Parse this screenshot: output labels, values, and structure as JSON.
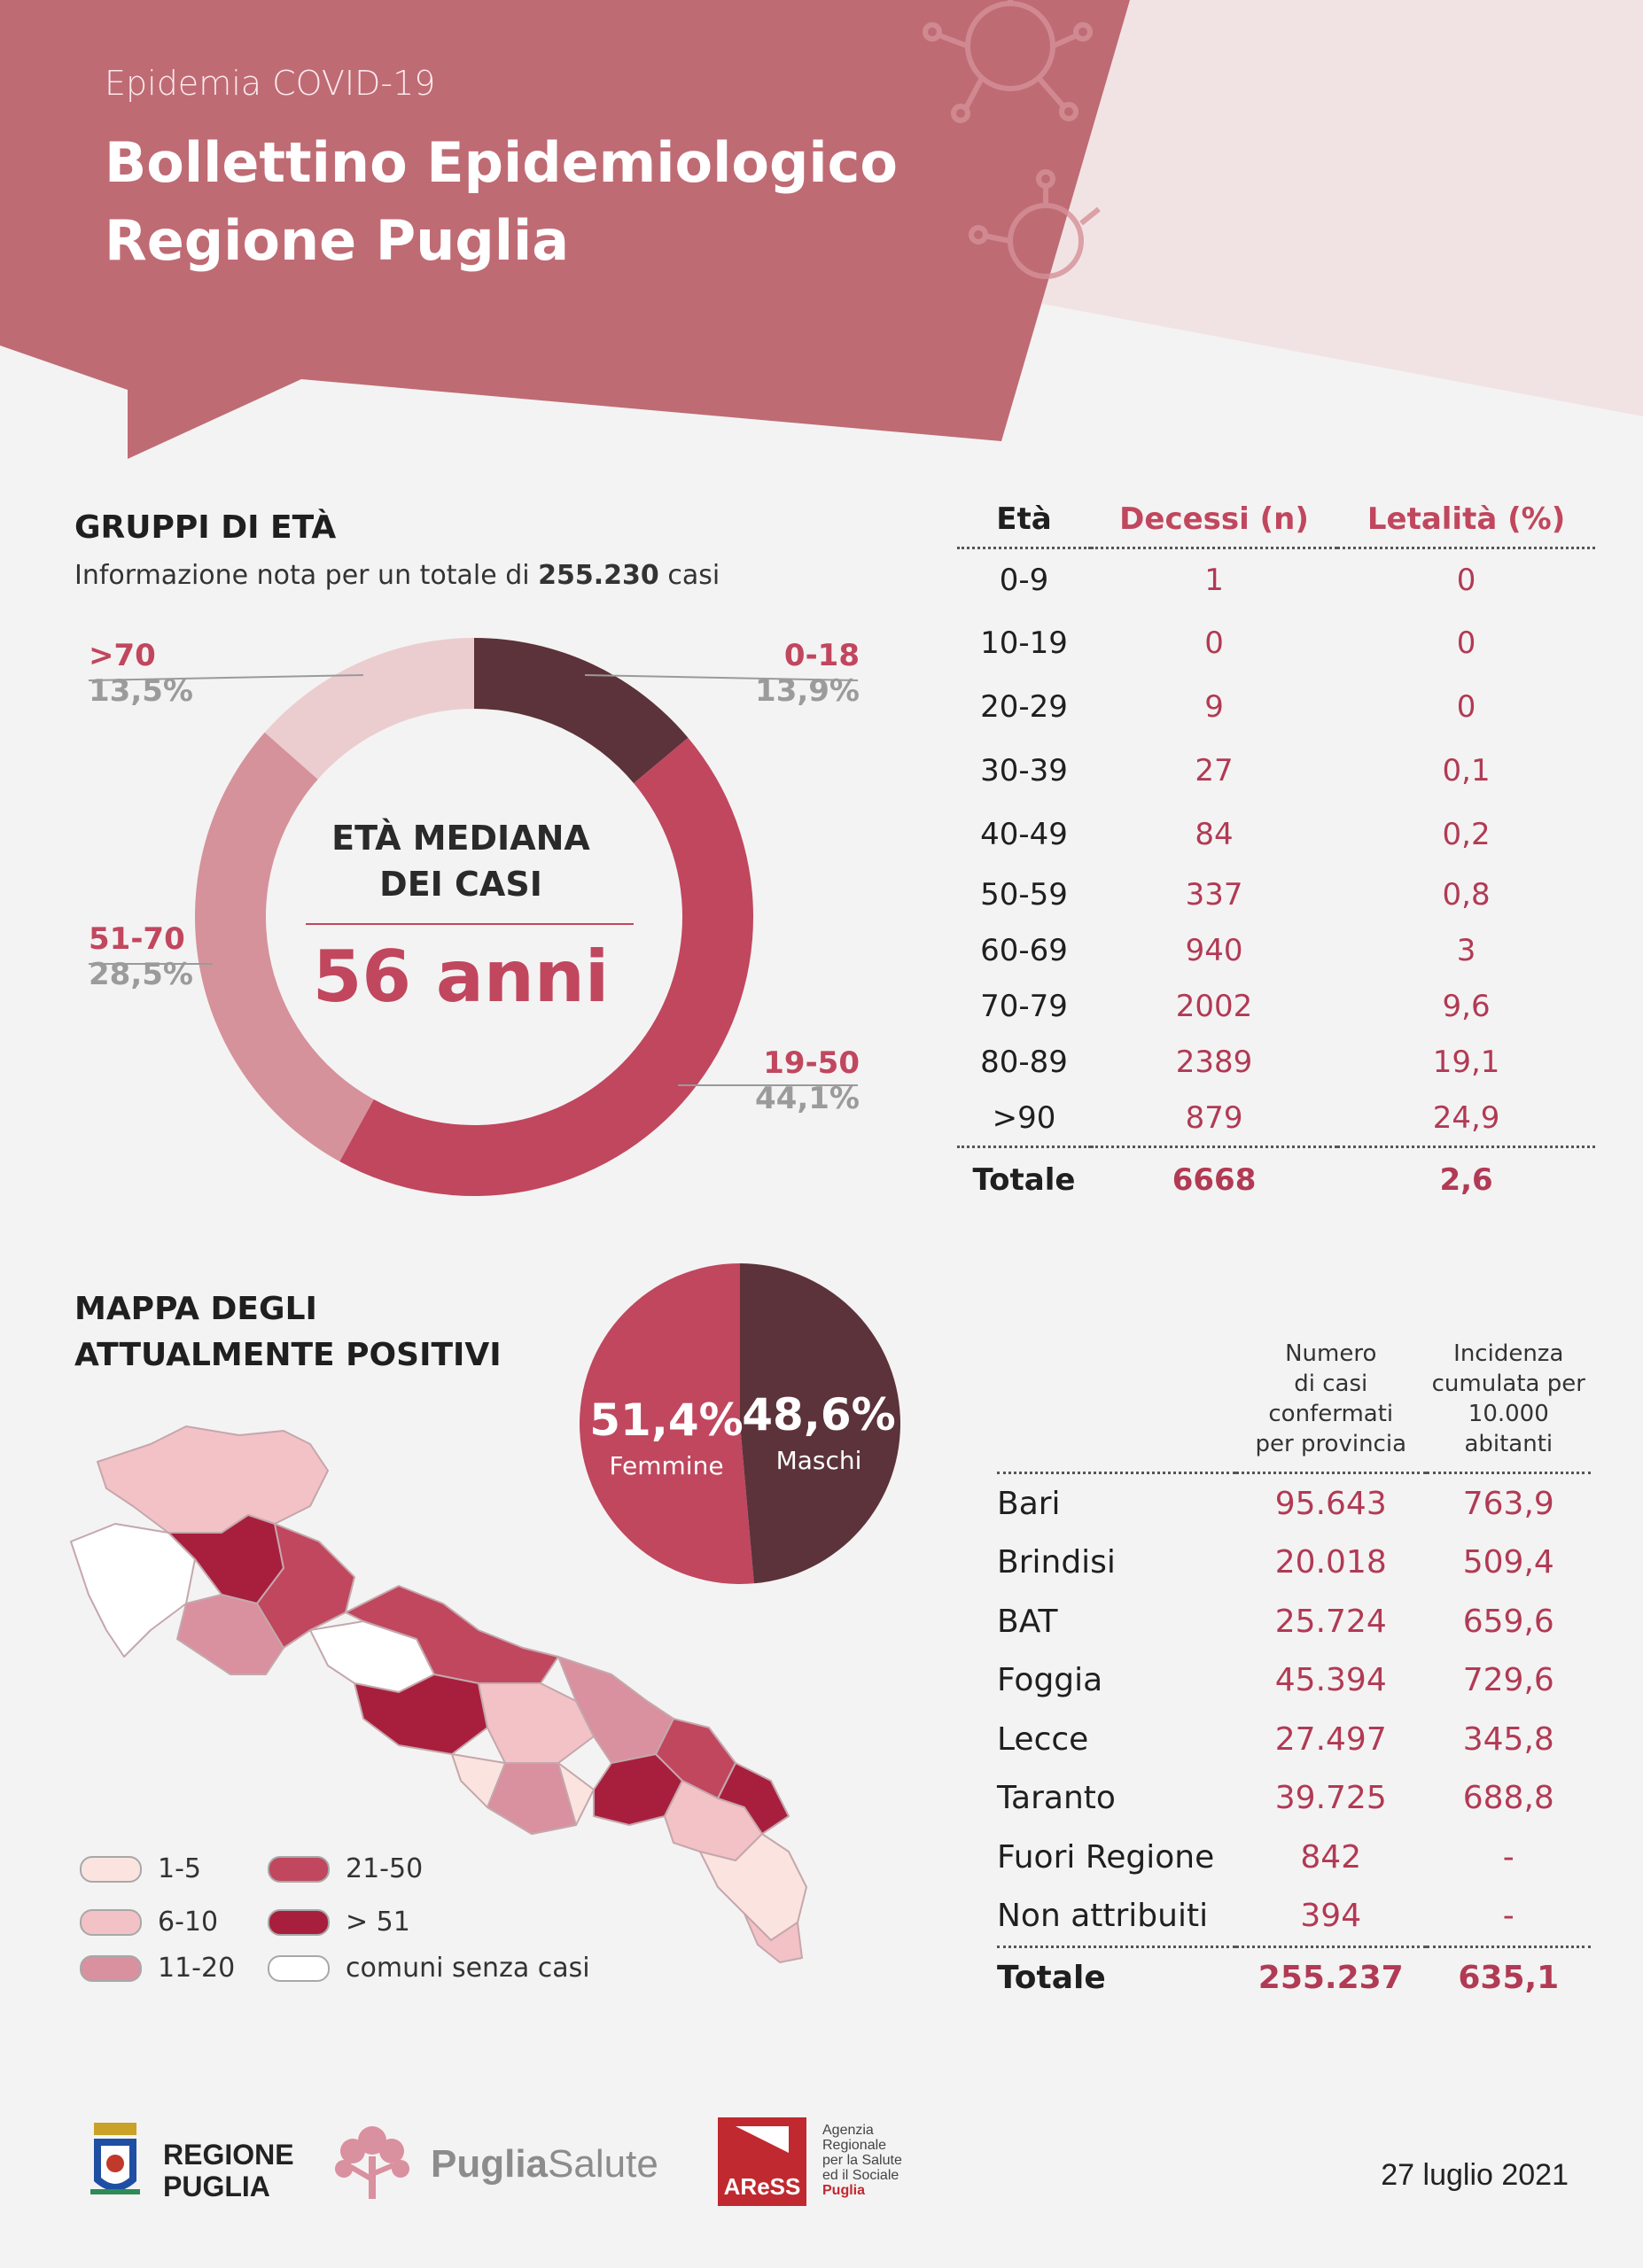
{
  "header": {
    "subtitle": "Epidemia COVID-19",
    "title_line1": "Bollettino Epidemiologico",
    "title_line2": "Regione Puglia"
  },
  "age_groups": {
    "title": "GRUPPI DI ETÀ",
    "info_prefix": "Informazione nota per un totale di",
    "info_total": "255.230",
    "info_suffix": "casi",
    "center_line1": "ETÀ MEDIANA",
    "center_line2": "DEI CASI",
    "median": "56 anni",
    "segments": [
      {
        "label": "0-18",
        "value": 13.9,
        "pct": "13,9%",
        "color": "#5c333a"
      },
      {
        "label": "19-50",
        "value": 44.1,
        "pct": "44,1%",
        "color": "#c0475e"
      },
      {
        "label": "51-70",
        "value": 28.5,
        "pct": "28,5%",
        "color": "#d5929a"
      },
      {
        "label": ">70",
        "value": 13.5,
        "pct": "13,5%",
        "color": "#ebcdd0"
      }
    ]
  },
  "deaths_table": {
    "headers": [
      "Età",
      "Decessi (n)",
      "Letalità (%)"
    ],
    "rows": [
      [
        "0-9",
        "1",
        "0"
      ],
      [
        "10-19",
        "0",
        "0"
      ],
      [
        "20-29",
        "9",
        "0"
      ],
      [
        "30-39",
        "27",
        "0,1"
      ],
      [
        "40-49",
        "84",
        "0,2"
      ],
      [
        "50-59",
        "337",
        "0,8"
      ],
      [
        "60-69",
        "940",
        "3"
      ],
      [
        "70-79",
        "2002",
        "9,6"
      ],
      [
        "80-89",
        "2389",
        "19,1"
      ],
      [
        ">90",
        "879",
        "24,9"
      ]
    ],
    "total": [
      "Totale",
      "6668",
      "2,6"
    ]
  },
  "map_section": {
    "title_line1": "MAPPA DEGLI",
    "title_line2": "ATTUALMENTE POSITIVI",
    "legend": [
      {
        "label": "1-5",
        "color": "#fbe4e0"
      },
      {
        "label": "6-10",
        "color": "#f3c2c6"
      },
      {
        "label": "11-20",
        "color": "#d9909f"
      },
      {
        "label": "21-50",
        "color": "#c0475e"
      },
      {
        "label": "> 51",
        "color": "#a81f3d"
      },
      {
        "label": "comuni senza casi",
        "color": "#ffffff"
      }
    ]
  },
  "gender": {
    "female_pct": "51,4%",
    "female_label": "Femmine",
    "female_value": 51.4,
    "male_pct": "48,6%",
    "male_label": "Maschi",
    "male_value": 48.6,
    "female_color": "#c0475e",
    "male_color": "#5c333a"
  },
  "province_table": {
    "header_cases": [
      "Numero",
      "di casi confermati",
      "per provincia"
    ],
    "header_incidence": [
      "Incidenza",
      "cumulata per",
      "10.000 abitanti"
    ],
    "rows": [
      [
        "Bari",
        "95.643",
        "763,9"
      ],
      [
        "Brindisi",
        "20.018",
        "509,4"
      ],
      [
        "BAT",
        "25.724",
        "659,6"
      ],
      [
        "Foggia",
        "45.394",
        "729,6"
      ],
      [
        "Lecce",
        "27.497",
        "345,8"
      ],
      [
        "Taranto",
        "39.725",
        "688,8"
      ],
      [
        "Fuori Regione",
        "842",
        "-"
      ],
      [
        "Non attribuiti",
        "394",
        "-"
      ]
    ],
    "total": [
      "Totale",
      "255.237",
      "635,1"
    ]
  },
  "footer": {
    "regione_line1": "REGIONE",
    "regione_line2": "PUGLIA",
    "puglia": "Puglia",
    "salute": "Salute",
    "aress_logo": "AReSS",
    "aress_desc": [
      "Agenzia",
      "Regionale",
      "per la Salute",
      "ed il Sociale",
      "Puglia"
    ],
    "date": "27 luglio 2021"
  },
  "colors": {
    "header": "#bf6b74",
    "accent": "#c0475e",
    "dark": "#5c333a"
  }
}
